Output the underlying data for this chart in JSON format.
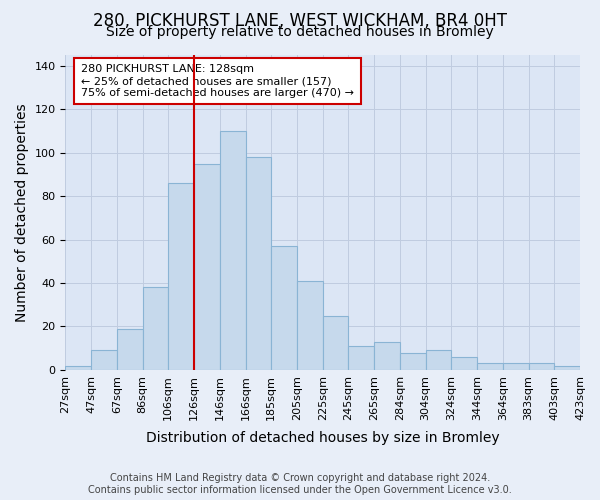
{
  "title": "280, PICKHURST LANE, WEST WICKHAM, BR4 0HT",
  "subtitle": "Size of property relative to detached houses in Bromley",
  "xlabel": "Distribution of detached houses by size in Bromley",
  "ylabel": "Number of detached properties",
  "bar_labels": [
    "27sqm",
    "47sqm",
    "67sqm",
    "86sqm",
    "106sqm",
    "126sqm",
    "146sqm",
    "166sqm",
    "185sqm",
    "205sqm",
    "225sqm",
    "245sqm",
    "265sqm",
    "284sqm",
    "304sqm",
    "324sqm",
    "344sqm",
    "364sqm",
    "383sqm",
    "403sqm",
    "423sqm"
  ],
  "bar_values": [
    2,
    9,
    19,
    38,
    86,
    95,
    110,
    98,
    57,
    41,
    25,
    11,
    13,
    8,
    9,
    6,
    3,
    3,
    3,
    2
  ],
  "bar_color": "#c6d9ec",
  "bar_edge_color": "#8ab4d4",
  "vline_color": "#cc0000",
  "annotation_text": "280 PICKHURST LANE: 128sqm\n← 25% of detached houses are smaller (157)\n75% of semi-detached houses are larger (470) →",
  "annotation_box_color": "#ffffff",
  "annotation_box_edge_color": "#cc0000",
  "ylim": [
    0,
    145
  ],
  "yticks": [
    0,
    20,
    40,
    60,
    80,
    100,
    120,
    140
  ],
  "footer_line1": "Contains HM Land Registry data © Crown copyright and database right 2024.",
  "footer_line2": "Contains public sector information licensed under the Open Government Licence v3.0.",
  "bg_color": "#e8eef8",
  "plot_bg_color": "#dce6f5",
  "grid_color": "#c0cce0",
  "title_fontsize": 12,
  "subtitle_fontsize": 10,
  "axis_label_fontsize": 10,
  "tick_fontsize": 8,
  "annotation_fontsize": 8,
  "footer_fontsize": 7
}
